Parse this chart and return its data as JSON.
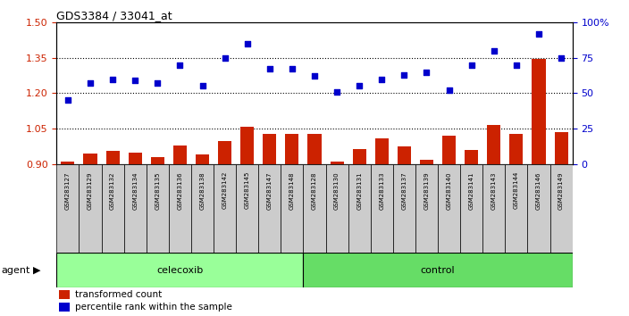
{
  "title": "GDS3384 / 33041_at",
  "samples": [
    "GSM283127",
    "GSM283129",
    "GSM283132",
    "GSM283134",
    "GSM283135",
    "GSM283136",
    "GSM283138",
    "GSM283142",
    "GSM283145",
    "GSM283147",
    "GSM283148",
    "GSM283128",
    "GSM283130",
    "GSM283131",
    "GSM283133",
    "GSM283137",
    "GSM283139",
    "GSM283140",
    "GSM283141",
    "GSM283143",
    "GSM283144",
    "GSM283146",
    "GSM283149"
  ],
  "bar_values": [
    0.912,
    0.945,
    0.955,
    0.95,
    0.93,
    0.98,
    0.94,
    1.0,
    1.06,
    1.03,
    1.03,
    1.03,
    0.91,
    0.965,
    1.01,
    0.975,
    0.92,
    1.02,
    0.96,
    1.065,
    1.03,
    1.345,
    1.035
  ],
  "dot_values": [
    45,
    57,
    60,
    59,
    57,
    70,
    55,
    75,
    85,
    67,
    67,
    62,
    51,
    55,
    60,
    63,
    65,
    52,
    70,
    80,
    70,
    92,
    75
  ],
  "celecoxib_count": 11,
  "control_count": 12,
  "bar_color": "#cc2200",
  "dot_color": "#0000cc",
  "celecoxib_color": "#99ff99",
  "control_color": "#66dd66",
  "label_bg_color": "#cccccc",
  "agent_label": "agent",
  "celecoxib_label": "celecoxib",
  "control_label": "control",
  "legend_bar": "transformed count",
  "legend_dot": "percentile rank within the sample",
  "ylim_left": [
    0.9,
    1.5
  ],
  "ylim_right": [
    0,
    100
  ],
  "yticks_left": [
    0.9,
    1.05,
    1.2,
    1.35,
    1.5
  ],
  "yticks_right": [
    0,
    25,
    50,
    75,
    100
  ],
  "ytick_labels_right": [
    "0",
    "25",
    "50",
    "75",
    "100%"
  ]
}
